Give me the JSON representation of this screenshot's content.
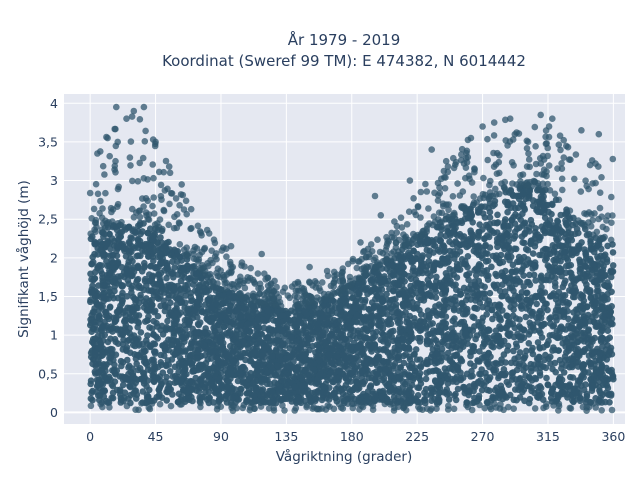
{
  "chart_data": {
    "type": "scatter",
    "title_line1": "År 1979 - 2019",
    "title_line2": "Koordinat (Sweref 99 TM): E 474382, N 6014442",
    "xlabel": "Vågriktning (grader)",
    "ylabel": "Signifikant våghöjd (m)",
    "xlim": [
      -18,
      368
    ],
    "ylim": [
      -0.15,
      4.12
    ],
    "x_ticks": [
      0,
      45,
      90,
      135,
      180,
      225,
      270,
      315,
      360
    ],
    "x_tick_labels": [
      "0",
      "45",
      "90",
      "135",
      "180",
      "225",
      "270",
      "315",
      "360"
    ],
    "y_ticks": [
      0,
      0.5,
      1,
      1.5,
      2,
      2.5,
      3,
      3.5,
      4
    ],
    "y_tick_labels": [
      "0",
      "0,5",
      "1",
      "1,5",
      "2",
      "2,5",
      "3",
      "3,5",
      "4"
    ],
    "grid": true,
    "marker_color": "#30576e",
    "plot_bg": "#e5e8f1",
    "upper_envelope": {
      "x": [
        0,
        20,
        40,
        50,
        60,
        75,
        90,
        105,
        120,
        135,
        150,
        165,
        180,
        195,
        210,
        225,
        240,
        255,
        270,
        285,
        300,
        315,
        330,
        345,
        360
      ],
      "y": [
        3.3,
        3.9,
        3.9,
        3.4,
        3.0,
        2.5,
        2.2,
        2.0,
        1.8,
        1.7,
        1.7,
        1.8,
        2.0,
        2.2,
        2.5,
        2.9,
        3.2,
        3.5,
        3.7,
        3.8,
        3.8,
        3.8,
        3.5,
        3.3,
        3.3
      ]
    },
    "dense_envelope": {
      "x": [
        0,
        20,
        40,
        50,
        60,
        75,
        90,
        105,
        120,
        135,
        150,
        165,
        180,
        195,
        210,
        225,
        240,
        255,
        270,
        285,
        300,
        315,
        330,
        345,
        360
      ],
      "y": [
        2.3,
        2.45,
        2.5,
        2.35,
        2.1,
        1.85,
        1.6,
        1.5,
        1.4,
        1.35,
        1.4,
        1.5,
        1.65,
        1.85,
        2.05,
        2.25,
        2.45,
        2.6,
        2.75,
        2.85,
        2.95,
        2.85,
        2.6,
        2.3,
        2.2
      ]
    },
    "outliers": [
      {
        "x": 18,
        "y": 3.95
      },
      {
        "x": 30,
        "y": 3.9
      },
      {
        "x": 37,
        "y": 3.95
      },
      {
        "x": 25,
        "y": 3.8
      },
      {
        "x": 45,
        "y": 3.5
      },
      {
        "x": 12,
        "y": 3.55
      },
      {
        "x": 55,
        "y": 3.1
      },
      {
        "x": 63,
        "y": 2.95
      },
      {
        "x": 97,
        "y": 2.15
      },
      {
        "x": 118,
        "y": 2.05
      },
      {
        "x": 151,
        "y": 1.88
      },
      {
        "x": 163,
        "y": 1.83
      },
      {
        "x": 186,
        "y": 2.2
      },
      {
        "x": 196,
        "y": 2.8
      },
      {
        "x": 200,
        "y": 2.55
      },
      {
        "x": 220,
        "y": 3.0
      },
      {
        "x": 235,
        "y": 3.4
      },
      {
        "x": 245,
        "y": 3.25
      },
      {
        "x": 262,
        "y": 3.55
      },
      {
        "x": 278,
        "y": 3.75
      },
      {
        "x": 289,
        "y": 3.8
      },
      {
        "x": 310,
        "y": 3.85
      },
      {
        "x": 318,
        "y": 3.8
      },
      {
        "x": 338,
        "y": 3.65
      },
      {
        "x": 350,
        "y": 3.6
      },
      {
        "x": 344,
        "y": 3.2
      },
      {
        "x": 5,
        "y": 3.35
      },
      {
        "x": 270,
        "y": 3.7
      }
    ]
  }
}
